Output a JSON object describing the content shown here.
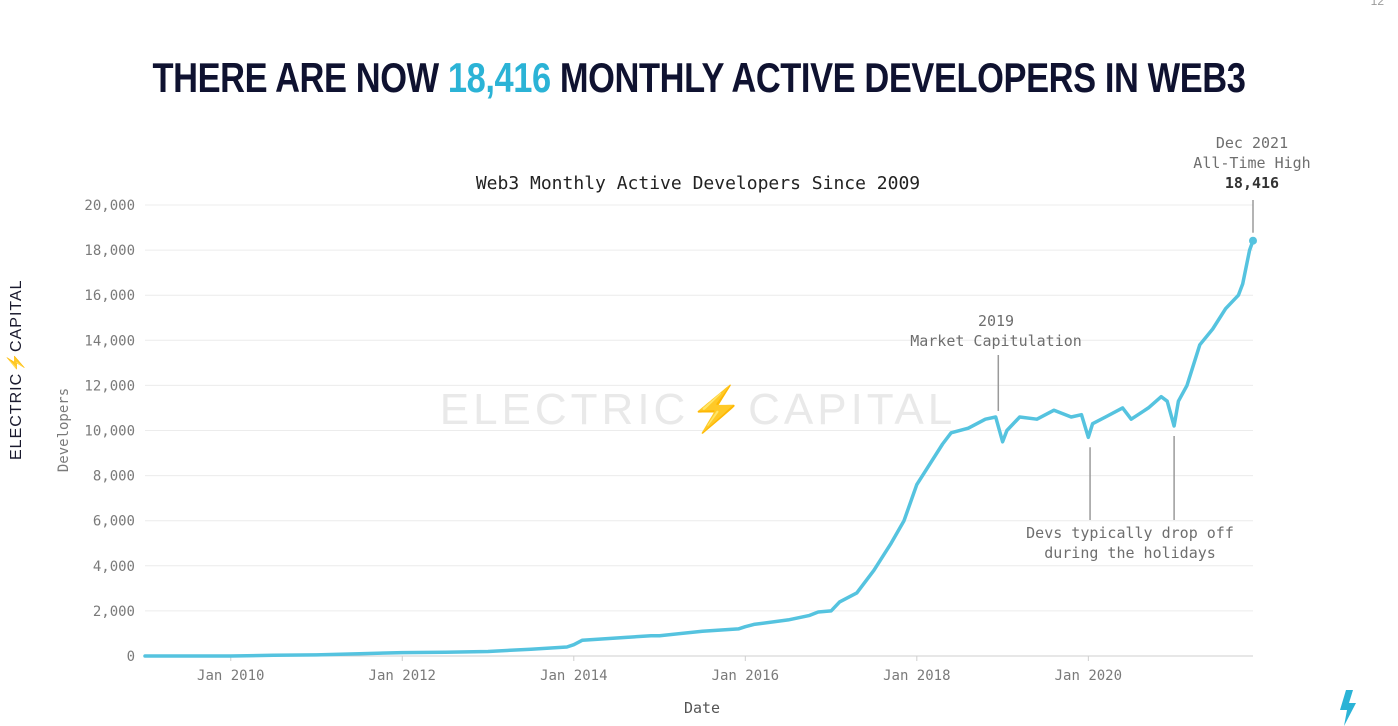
{
  "page_number": "12",
  "headline": {
    "prefix": "THERE ARE NOW ",
    "highlight": "18,416",
    "suffix": " MONTHLY ACTIVE DEVELOPERS IN WEB3"
  },
  "brand": {
    "left_word": "ELECTRIC",
    "right_word": "CAPITAL",
    "watermark": "ELECTRIC⚡CAPITAL"
  },
  "colors": {
    "line": "#55c3df",
    "accent": "#2bb3d6",
    "headline": "#0f1230",
    "axis_text": "#7a7a7a",
    "grid": "#ececec"
  },
  "chart_data": {
    "type": "line",
    "title": "Web3 Monthly Active Developers Since 2009",
    "xlabel": "Date",
    "ylabel": "Developers",
    "ylim": [
      0,
      20000
    ],
    "xlim": [
      2009.0,
      2021.92
    ],
    "grid": true,
    "y_ticks": [
      0,
      2000,
      4000,
      6000,
      8000,
      10000,
      12000,
      14000,
      16000,
      18000,
      20000
    ],
    "y_tick_labels": [
      "0",
      "2,000",
      "4,000",
      "6,000",
      "8,000",
      "10,000",
      "12,000",
      "14,000",
      "16,000",
      "18,000",
      "20,000"
    ],
    "x_ticks": [
      2010,
      2012,
      2014,
      2016,
      2018,
      2020
    ],
    "x_tick_labels": [
      "Jan 2010",
      "Jan 2012",
      "Jan 2014",
      "Jan 2016",
      "Jan 2018",
      "Jan 2020"
    ],
    "series": [
      {
        "x": [
          2009.0,
          2009.5,
          2010.0,
          2010.5,
          2011.0,
          2011.5,
          2012.0,
          2012.5,
          2013.0,
          2013.5,
          2013.92,
          2014.0,
          2014.1,
          2014.5,
          2014.9,
          2015.0,
          2015.5,
          2015.92,
          2016.0,
          2016.1,
          2016.5,
          2016.75,
          2016.85,
          2017.0,
          2017.1,
          2017.3,
          2017.5,
          2017.7,
          2017.85,
          2018.0,
          2018.1,
          2018.3,
          2018.4,
          2018.6,
          2018.8,
          2018.92,
          2019.0,
          2019.05,
          2019.2,
          2019.4,
          2019.6,
          2019.8,
          2019.92,
          2020.0,
          2020.05,
          2020.2,
          2020.4,
          2020.5,
          2020.7,
          2020.85,
          2020.92,
          2021.0,
          2021.05,
          2021.15,
          2021.3,
          2021.45,
          2021.6,
          2021.75,
          2021.8,
          2021.88,
          2021.92
        ],
        "y": [
          0,
          0,
          0,
          30,
          50,
          100,
          150,
          170,
          200,
          300,
          400,
          500,
          700,
          800,
          900,
          900,
          1100,
          1200,
          1300,
          1400,
          1600,
          1800,
          1950,
          2000,
          2400,
          2800,
          3800,
          5000,
          6000,
          7600,
          8200,
          9400,
          9900,
          10100,
          10500,
          10600,
          9500,
          10000,
          10600,
          10500,
          10900,
          10600,
          10700,
          9700,
          10300,
          10600,
          11000,
          10500,
          11000,
          11500,
          11300,
          10200,
          11300,
          12000,
          13800,
          14500,
          15400,
          16000,
          16500,
          18000,
          18416
        ]
      }
    ],
    "annotations": [
      {
        "id": "capitulation",
        "x": 2018.95,
        "y": 10600,
        "lines": [
          "2019",
          "Market Capitulation"
        ]
      },
      {
        "id": "holidays",
        "x": [
          2020.02,
          2021.0
        ],
        "y": [
          9700,
          10200
        ],
        "lines": [
          "Devs typically drop off",
          "during the holidays"
        ]
      },
      {
        "id": "ath",
        "x": 2021.92,
        "y": 18416,
        "lines": [
          "Dec 2021",
          "All-Time High",
          "18,416"
        ]
      }
    ]
  }
}
